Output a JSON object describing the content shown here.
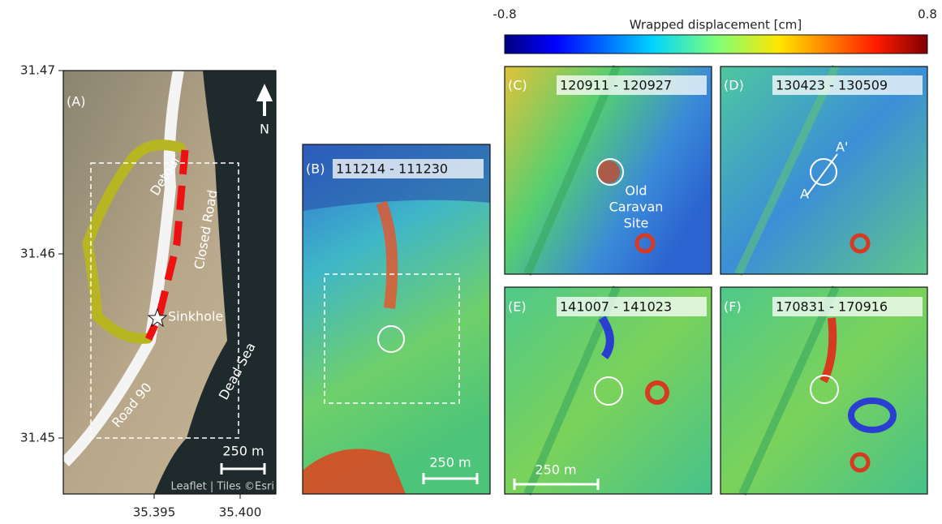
{
  "colorbar": {
    "min_label": "-0.8",
    "max_label": "0.8",
    "title": "Wrapped displacement [cm]"
  },
  "panel_a": {
    "label": "(A)",
    "yticks": [
      "31.47",
      "31.46",
      "31.45"
    ],
    "xticks": [
      "35.395",
      "35.400"
    ],
    "north": "N",
    "annotations": {
      "detour": "Detour",
      "closed_road": "Closed Road",
      "sinkhole": "Sinkhole",
      "road": "Road 90",
      "sea": "Dead Sea"
    },
    "scale": "250 m",
    "attribution": "Leaflet | Tiles ©Esri"
  },
  "panel_b": {
    "label": "(B)",
    "dates": "111214 - 111230",
    "scale": "250 m"
  },
  "panel_c": {
    "label": "(C)",
    "dates": "120911 - 120927",
    "site": [
      "Old",
      "Caravan",
      "Site"
    ]
  },
  "panel_d": {
    "label": "(D)",
    "dates": "130423 - 130509",
    "profile_start": "A",
    "profile_end": "A'"
  },
  "panel_e": {
    "label": "(E)",
    "dates": "141007 - 141023",
    "scale": "250 m"
  },
  "panel_f": {
    "label": "(F)",
    "dates": "170831 - 170916"
  }
}
